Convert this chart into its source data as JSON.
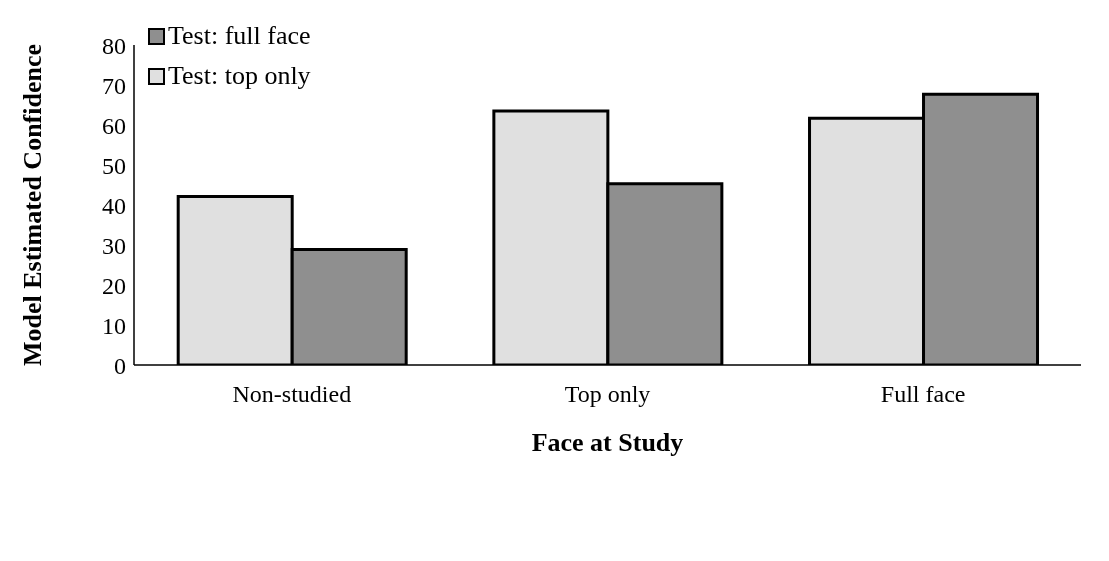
{
  "chart_data": {
    "type": "bar",
    "xlabel": "Face at Study",
    "ylabel": "Model Estimated Confidence",
    "categories": [
      "Non-studied",
      "Top only",
      "Full face"
    ],
    "series": [
      {
        "name": "Test: top only",
        "color": "#e0e0e0",
        "values": [
          42.1,
          63.5,
          61.7
        ]
      },
      {
        "name": "Test: full face",
        "color": "#8f8f8f",
        "values": [
          28.9,
          45.3,
          67.7
        ]
      }
    ],
    "ylim": [
      0,
      80
    ],
    "yticks": [
      0,
      10,
      20,
      30,
      40,
      50,
      60,
      70,
      80
    ],
    "grid": false,
    "legend": "top left"
  }
}
